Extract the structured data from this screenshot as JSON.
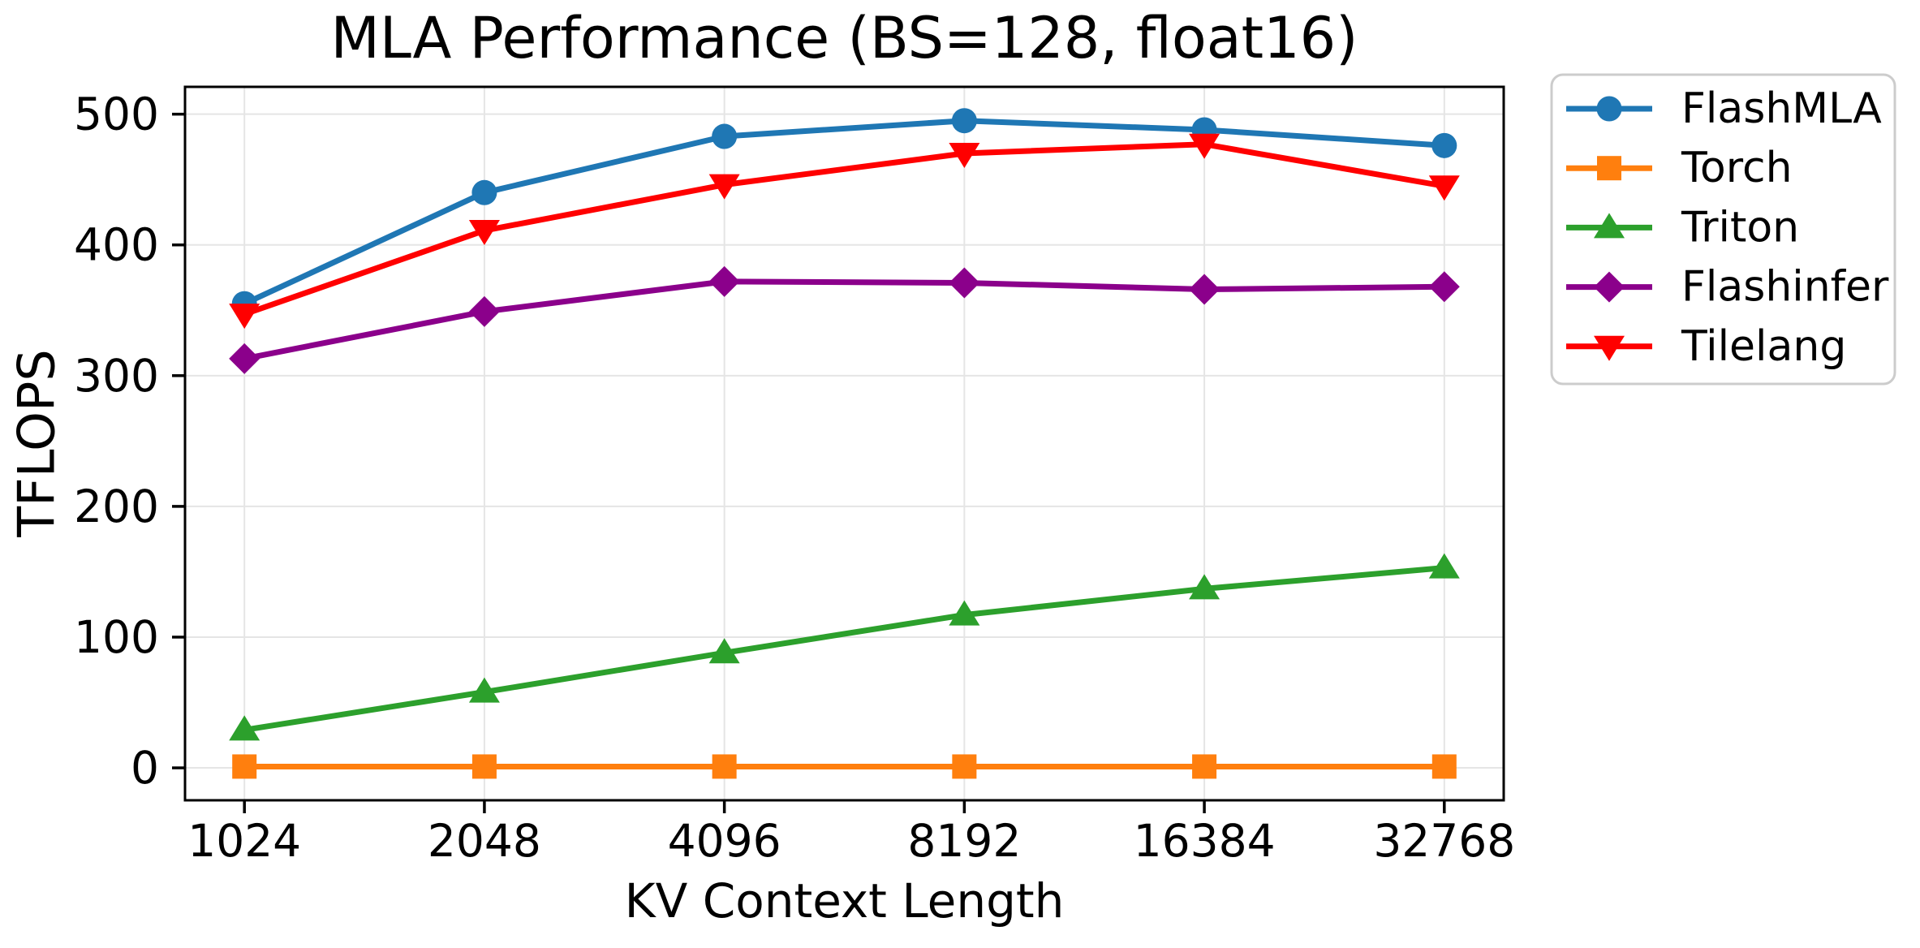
{
  "figure": {
    "title": "MLA Performance (BS=128, float16)",
    "xlabel": "KV Context Length",
    "ylabel": "TFLOPS"
  },
  "chart_data": {
    "type": "line",
    "title": "MLA Performance (BS=128, float16)",
    "xlabel": "KV Context Length",
    "ylabel": "TFLOPS",
    "categories": [
      "1024",
      "2048",
      "4096",
      "8192",
      "16384",
      "32768"
    ],
    "x_values": [
      1024,
      2048,
      4096,
      8192,
      16384,
      32768
    ],
    "x_scale": "log2-equidistant-categories",
    "yticks": [
      0,
      100,
      200,
      300,
      400,
      500
    ],
    "ylim": [
      -24.8,
      520.9
    ],
    "grid": true,
    "grid_color": "#e5e5e5",
    "legend_position": "outside-upper-right",
    "series": [
      {
        "name": "FlashMLA",
        "color": "#1f77b4",
        "marker": "circle",
        "values": [
          355,
          440,
          483,
          495,
          488,
          476
        ]
      },
      {
        "name": "Torch",
        "color": "#ff7f0e",
        "marker": "square",
        "values": [
          1,
          1,
          1,
          1,
          1,
          1
        ]
      },
      {
        "name": "Triton",
        "color": "#2ca02c",
        "marker": "triangle-up",
        "values": [
          29,
          58,
          88,
          117,
          137,
          153
        ]
      },
      {
        "name": "Flashinfer",
        "color": "#8b008b",
        "marker": "diamond",
        "values": [
          313,
          349,
          372,
          371,
          366,
          368
        ]
      },
      {
        "name": "Tilelang",
        "color": "#ff0000",
        "marker": "triangle-down",
        "values": [
          347,
          411,
          446,
          470,
          477,
          445
        ]
      }
    ]
  }
}
